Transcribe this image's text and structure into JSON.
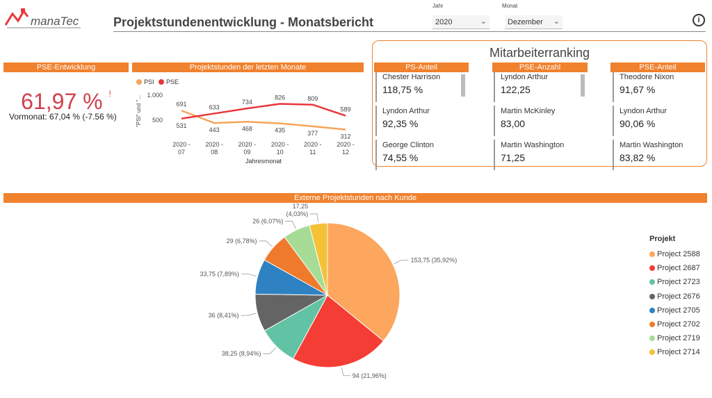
{
  "header": {
    "logo_text": "manaTec",
    "title": "Projektstundenentwicklung - Monatsbericht",
    "slicers": [
      {
        "label": "Jahr",
        "value": "2020"
      },
      {
        "label": "Monat",
        "value": "Dezember"
      }
    ],
    "info_glyph": "i"
  },
  "kpi": {
    "bar_title": "PSE-Entwicklung",
    "value": "61,97 %",
    "alert_glyph": "!",
    "previous": "Vormonat: 67,04 % (-7.56 %)",
    "value_color": "#d1404b"
  },
  "line_section": {
    "bar_title": "Projektstunden der letzten Monate"
  },
  "ranking": {
    "title": "Mitarbeiterranking",
    "columns": [
      {
        "header": "PS-Anteil",
        "rows": [
          {
            "name": "Chester Harrison",
            "value": "118,75 %"
          },
          {
            "name": "Lyndon Arthur",
            "value": "92,35 %"
          },
          {
            "name": "George Clinton",
            "value": "74,55 %"
          }
        ]
      },
      {
        "header": "PSE-Anzahl",
        "rows": [
          {
            "name": "Lyndon Arthur",
            "value": "122,25"
          },
          {
            "name": "Martin McKinley",
            "value": "83,00"
          },
          {
            "name": "Martin Washington",
            "value": "71,25"
          }
        ]
      },
      {
        "header": "PSE-Anteil",
        "rows": [
          {
            "name": "Theodore Nixon",
            "value": "91,67 %"
          },
          {
            "name": "Lyndon Arthur",
            "value": "90,06 %"
          },
          {
            "name": "Martin Washington",
            "value": "83,82 %"
          }
        ]
      }
    ]
  },
  "pie_section": {
    "bar_title": "Externe Projektstunden nach Kunde"
  },
  "legend": {
    "title": "Projekt"
  },
  "colors": {
    "accent": "#f0812d"
  },
  "chart_data": [
    {
      "type": "line",
      "categories": [
        "2020 - 07",
        "2020 - 08",
        "2020 - 09",
        "2020 - 10",
        "2020 - 11",
        "2020 - 12"
      ],
      "category_lines": [
        [
          "2020 -",
          "07"
        ],
        [
          "2020 -",
          "08"
        ],
        [
          "2020 -",
          "09"
        ],
        [
          "2020 -",
          "10"
        ],
        [
          "2020 -",
          "11"
        ],
        [
          "2020 -",
          "12"
        ]
      ],
      "series": [
        {
          "name": "PSI",
          "color": "#f5a55b",
          "values": [
            691,
            443,
            468,
            435,
            377,
            312
          ]
        },
        {
          "name": "PSE",
          "color": "#e8363c",
          "values": [
            531,
            633,
            734,
            826,
            809,
            589
          ]
        }
      ],
      "xlabel": "Jahresmonat",
      "ylabel": "\"PSI\" und \"...",
      "yticks": [
        500,
        1000
      ],
      "ytick_labels": [
        "500",
        "1.000"
      ],
      "ylim": [
        250,
        1100
      ],
      "legend": "top-left"
    },
    {
      "type": "pie",
      "slices": [
        {
          "name": "Project 2588",
          "value": 153.75,
          "label": "153,75 (35,92%)",
          "color": "#fda65d"
        },
        {
          "name": "Project 2687",
          "value": 94,
          "label": "94 (21,96%)",
          "color": "#f43d35"
        },
        {
          "name": "Project 2723",
          "value": 38.25,
          "label": "38,25 (8,94%)",
          "color": "#62c3a4"
        },
        {
          "name": "Project 2676",
          "value": 36,
          "label": "36 (8,41%)",
          "color": "#646464"
        },
        {
          "name": "Project 2705",
          "value": 33.75,
          "label": "33,75 (7,89%)",
          "color": "#2e82c2"
        },
        {
          "name": "Project 2702",
          "value": 29,
          "label": "29 (6,78%)",
          "color": "#ef7a2b"
        },
        {
          "name": "Project 2719",
          "value": 26,
          "label": "26 (6,07%)",
          "color": "#a6dc96"
        },
        {
          "name": "Project 2714",
          "value": 17.25,
          "label": "17,25 (4,03%)",
          "label_lines": [
            "17,25",
            "(4,03%)"
          ],
          "color": "#f5c136"
        }
      ],
      "legend": "right"
    }
  ]
}
